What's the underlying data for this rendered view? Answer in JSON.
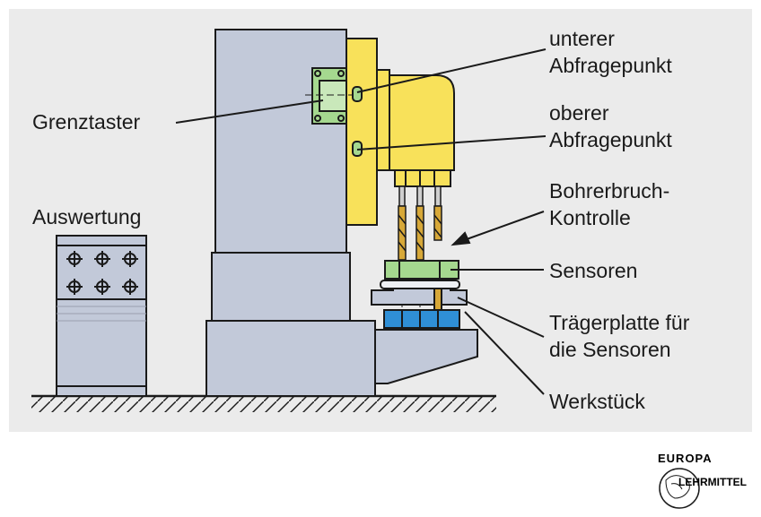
{
  "labels": {
    "unterer_1": "unterer",
    "unterer_2": "Abfragepunkt",
    "oberer_1": "oberer",
    "oberer_2": "Abfragepunkt",
    "grenztaster": "Grenztaster",
    "bohrerbruch_1": "Bohrerbruch-",
    "bohrerbruch_2": "Kontrolle",
    "auswertung": "Auswertung",
    "sensoren": "Sensoren",
    "traeger_1": "Trägerplatte für",
    "traeger_2": "die Sensoren",
    "werkstueck": "Werkstück"
  },
  "logo": {
    "word_top": "EUROPA",
    "word_bottom": "LEHRMITTEL"
  },
  "colors": {
    "panel": "#ebebeb",
    "machine": "#c2c9d9",
    "head": "#f8e15a",
    "sensor": "#a5d88f",
    "workpiece": "#2f8fd6",
    "drill": "#d7a838",
    "outline": "#1a1a1a"
  }
}
